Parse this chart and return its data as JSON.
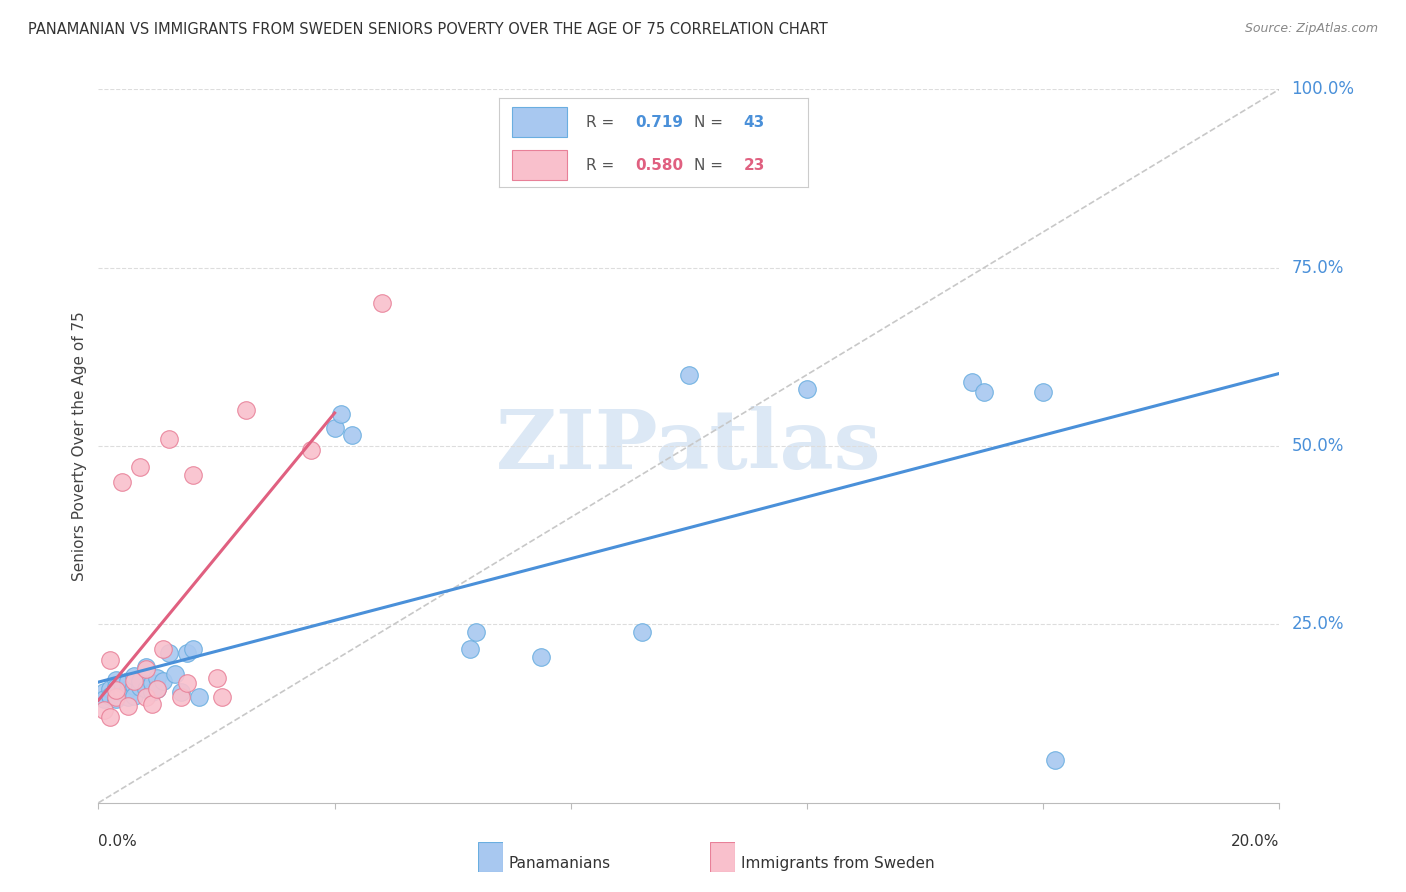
{
  "title": "PANAMANIAN VS IMMIGRANTS FROM SWEDEN SENIORS POVERTY OVER THE AGE OF 75 CORRELATION CHART",
  "source": "Source: ZipAtlas.com",
  "ylabel": "Seniors Poverty Over the Age of 75",
  "right_yticks": [
    "100.0%",
    "75.0%",
    "50.0%",
    "25.0%"
  ],
  "right_ytick_vals": [
    1.0,
    0.75,
    0.5,
    0.25
  ],
  "blue_scatter_color": "#a8c8f0",
  "pink_scatter_color": "#f9c0cc",
  "blue_edge_color": "#6aaee0",
  "pink_edge_color": "#e88098",
  "blue_line_color": "#4a90d9",
  "pink_line_color": "#e06080",
  "diag_line_color": "#c8c8c8",
  "axis_label_color": "#4a90d9",
  "title_color": "#333333",
  "source_color": "#888888",
  "grid_color": "#dddddd",
  "watermark_color": "#dce8f5",
  "legend_r_color": "#555555",
  "legend_blue_val_color": "#4a90d9",
  "legend_pink_val_color": "#e06080",
  "pan_x": [
    0.001,
    0.001,
    0.002,
    0.002,
    0.003,
    0.003,
    0.003,
    0.004,
    0.004,
    0.005,
    0.005,
    0.005,
    0.006,
    0.006,
    0.006,
    0.007,
    0.007,
    0.008,
    0.008,
    0.009,
    0.009,
    0.01,
    0.01,
    0.011,
    0.012,
    0.013,
    0.014,
    0.015,
    0.016,
    0.017,
    0.04,
    0.041,
    0.043,
    0.063,
    0.064,
    0.075,
    0.092,
    0.1,
    0.12,
    0.148,
    0.15,
    0.16,
    0.162
  ],
  "pan_y": [
    0.155,
    0.145,
    0.16,
    0.15,
    0.172,
    0.162,
    0.145,
    0.155,
    0.168,
    0.148,
    0.16,
    0.17,
    0.163,
    0.178,
    0.15,
    0.162,
    0.17,
    0.16,
    0.19,
    0.155,
    0.168,
    0.175,
    0.16,
    0.17,
    0.21,
    0.18,
    0.155,
    0.21,
    0.215,
    0.148,
    0.525,
    0.545,
    0.515,
    0.215,
    0.24,
    0.205,
    0.24,
    0.6,
    0.58,
    0.59,
    0.575,
    0.575,
    0.06
  ],
  "swe_x": [
    0.001,
    0.002,
    0.002,
    0.003,
    0.003,
    0.004,
    0.005,
    0.006,
    0.007,
    0.008,
    0.008,
    0.009,
    0.01,
    0.011,
    0.012,
    0.014,
    0.015,
    0.016,
    0.02,
    0.021,
    0.025,
    0.036,
    0.048
  ],
  "swe_y": [
    0.13,
    0.12,
    0.2,
    0.148,
    0.158,
    0.45,
    0.135,
    0.17,
    0.47,
    0.148,
    0.188,
    0.138,
    0.16,
    0.215,
    0.51,
    0.148,
    0.168,
    0.46,
    0.175,
    0.148,
    0.55,
    0.495,
    0.7
  ],
  "xlim": [
    0,
    0.2
  ],
  "ylim": [
    0,
    1.0
  ],
  "blue_r_val": "0.719",
  "blue_n_val": "43",
  "pink_r_val": "0.580",
  "pink_n_val": "23"
}
